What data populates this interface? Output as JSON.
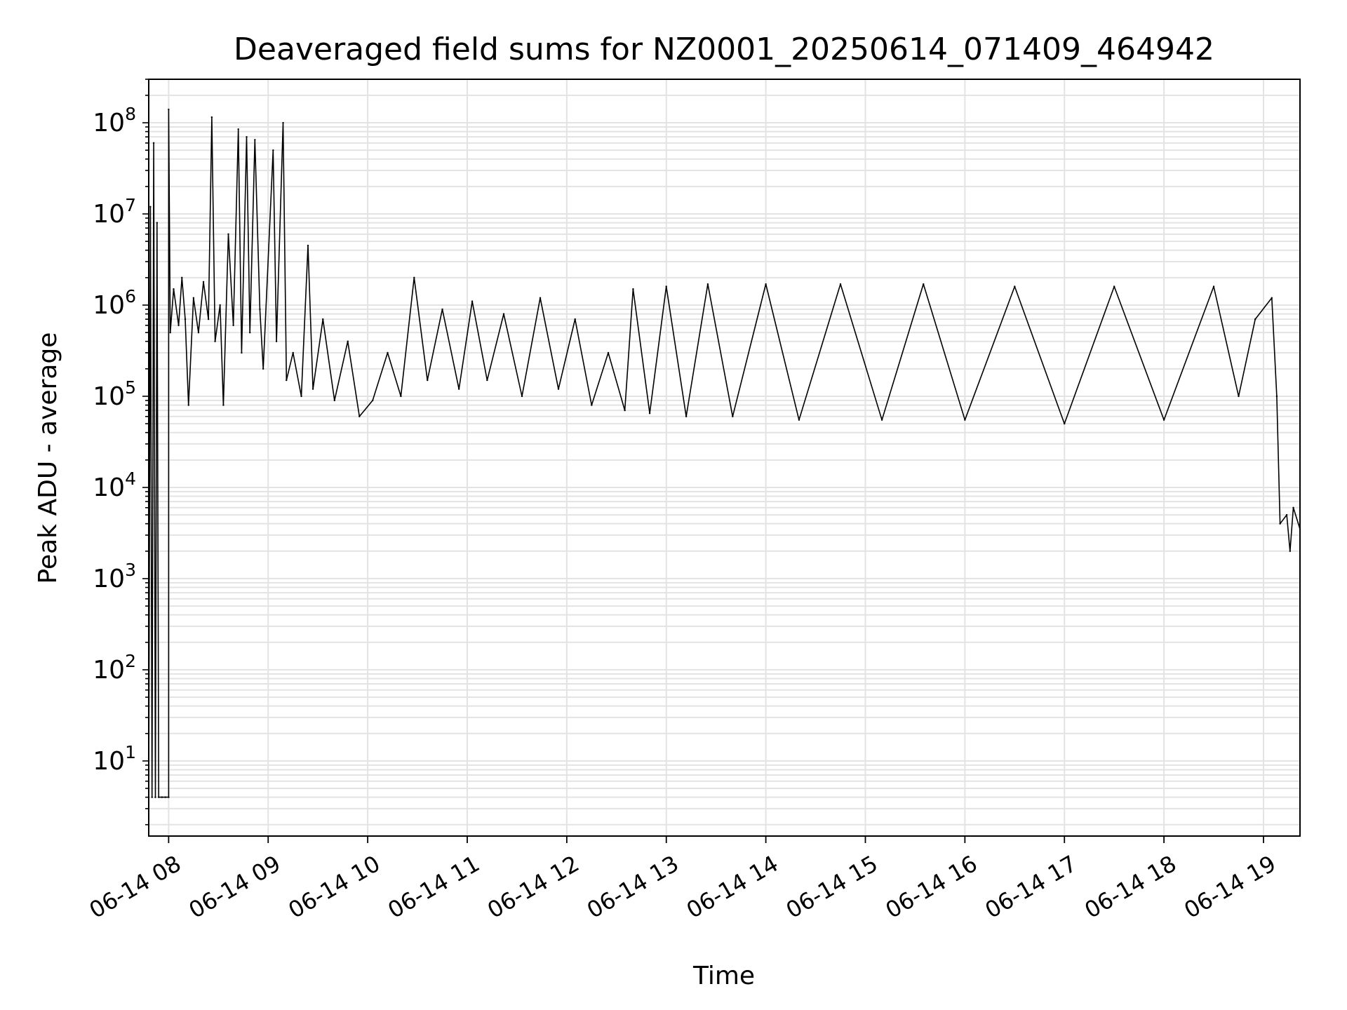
{
  "chart_data": {
    "type": "line",
    "title": "Deaveraged field sums for NZ0001_20250614_071409_464942",
    "xlabel": "Time",
    "ylabel": "Peak ADU - average",
    "x_scale": "time",
    "y_scale": "log",
    "xlim": [
      "06-14 07:48",
      "06-14 19:22"
    ],
    "ylim": [
      1.5,
      300000000
    ],
    "grid": true,
    "x_ticks": [
      "06-14 08",
      "06-14 09",
      "06-14 10",
      "06-14 11",
      "06-14 12",
      "06-14 13",
      "06-14 14",
      "06-14 15",
      "06-14 16",
      "06-14 17",
      "06-14 18",
      "06-14 19"
    ],
    "y_ticks": [
      {
        "base": "10",
        "exp": "1",
        "value": 10
      },
      {
        "base": "10",
        "exp": "2",
        "value": 100
      },
      {
        "base": "10",
        "exp": "3",
        "value": 1000
      },
      {
        "base": "10",
        "exp": "4",
        "value": 10000
      },
      {
        "base": "10",
        "exp": "5",
        "value": 100000
      },
      {
        "base": "10",
        "exp": "6",
        "value": 1000000
      },
      {
        "base": "10",
        "exp": "7",
        "value": 10000000
      },
      {
        "base": "10",
        "exp": "8",
        "value": 100000000
      }
    ],
    "series": [
      {
        "color": "#000000",
        "points": [
          [
            "06-14 07:48",
            4
          ],
          [
            "06-14 07:49",
            12000000
          ],
          [
            "06-14 07:50",
            4
          ],
          [
            "06-14 07:51",
            60000000
          ],
          [
            "06-14 07:52",
            4
          ],
          [
            "06-14 07:53",
            8000000
          ],
          [
            "06-14 07:54",
            4
          ],
          [
            "06-14 07:56",
            4
          ],
          [
            "06-14 07:58",
            4
          ],
          [
            "06-14 08:00",
            4
          ],
          [
            "06-14 08:00",
            140000000
          ],
          [
            "06-14 08:01",
            500000
          ],
          [
            "06-14 08:03",
            1500000
          ],
          [
            "06-14 08:06",
            600000
          ],
          [
            "06-14 08:08",
            2000000
          ],
          [
            "06-14 08:10",
            700000
          ],
          [
            "06-14 08:12",
            80000
          ],
          [
            "06-14 08:15",
            1200000
          ],
          [
            "06-14 08:18",
            500000
          ],
          [
            "06-14 08:21",
            1800000
          ],
          [
            "06-14 08:24",
            700000
          ],
          [
            "06-14 08:26",
            115000000
          ],
          [
            "06-14 08:28",
            400000
          ],
          [
            "06-14 08:31",
            1000000
          ],
          [
            "06-14 08:33",
            80000
          ],
          [
            "06-14 08:36",
            6000000
          ],
          [
            "06-14 08:39",
            600000
          ],
          [
            "06-14 08:42",
            85000000
          ],
          [
            "06-14 08:44",
            300000
          ],
          [
            "06-14 08:47",
            70000000
          ],
          [
            "06-14 08:49",
            500000
          ],
          [
            "06-14 08:52",
            65000000
          ],
          [
            "06-14 08:55",
            900000
          ],
          [
            "06-14 08:57",
            200000
          ],
          [
            "06-14 09:03",
            50000000
          ],
          [
            "06-14 09:05",
            400000
          ],
          [
            "06-14 09:09",
            100000000
          ],
          [
            "06-14 09:11",
            150000
          ],
          [
            "06-14 09:15",
            300000
          ],
          [
            "06-14 09:20",
            100000
          ],
          [
            "06-14 09:24",
            4500000
          ],
          [
            "06-14 09:27",
            120000
          ],
          [
            "06-14 09:33",
            700000
          ],
          [
            "06-14 09:40",
            90000
          ],
          [
            "06-14 09:48",
            400000
          ],
          [
            "06-14 09:55",
            60000
          ],
          [
            "06-14 10:03",
            90000
          ],
          [
            "06-14 10:12",
            300000
          ],
          [
            "06-14 10:20",
            100000
          ],
          [
            "06-14 10:28",
            2000000
          ],
          [
            "06-14 10:36",
            150000
          ],
          [
            "06-14 10:45",
            900000
          ],
          [
            "06-14 10:55",
            120000
          ],
          [
            "06-14 11:03",
            1100000
          ],
          [
            "06-14 11:12",
            150000
          ],
          [
            "06-14 11:22",
            800000
          ],
          [
            "06-14 11:33",
            100000
          ],
          [
            "06-14 11:44",
            1200000
          ],
          [
            "06-14 11:55",
            120000
          ],
          [
            "06-14 12:05",
            700000
          ],
          [
            "06-14 12:15",
            80000
          ],
          [
            "06-14 12:25",
            300000
          ],
          [
            "06-14 12:35",
            70000
          ],
          [
            "06-14 12:40",
            1500000
          ],
          [
            "06-14 12:50",
            65000
          ],
          [
            "06-14 13:00",
            1600000
          ],
          [
            "06-14 13:12",
            60000
          ],
          [
            "06-14 13:25",
            1700000
          ],
          [
            "06-14 13:40",
            60000
          ],
          [
            "06-14 14:00",
            1700000
          ],
          [
            "06-14 14:20",
            55000
          ],
          [
            "06-14 14:45",
            1700000
          ],
          [
            "06-14 15:10",
            55000
          ],
          [
            "06-14 15:35",
            1700000
          ],
          [
            "06-14 16:00",
            55000
          ],
          [
            "06-14 16:30",
            1600000
          ],
          [
            "06-14 17:00",
            50000
          ],
          [
            "06-14 17:30",
            1600000
          ],
          [
            "06-14 18:00",
            55000
          ],
          [
            "06-14 18:30",
            1600000
          ],
          [
            "06-14 18:45",
            100000
          ],
          [
            "06-14 18:55",
            700000
          ],
          [
            "06-14 19:05",
            1200000
          ],
          [
            "06-14 19:08",
            100000
          ],
          [
            "06-14 19:10",
            4000
          ],
          [
            "06-14 19:14",
            5000
          ],
          [
            "06-14 19:16",
            2000
          ],
          [
            "06-14 19:18",
            6000
          ],
          [
            "06-14 19:22",
            3500
          ]
        ]
      }
    ]
  }
}
